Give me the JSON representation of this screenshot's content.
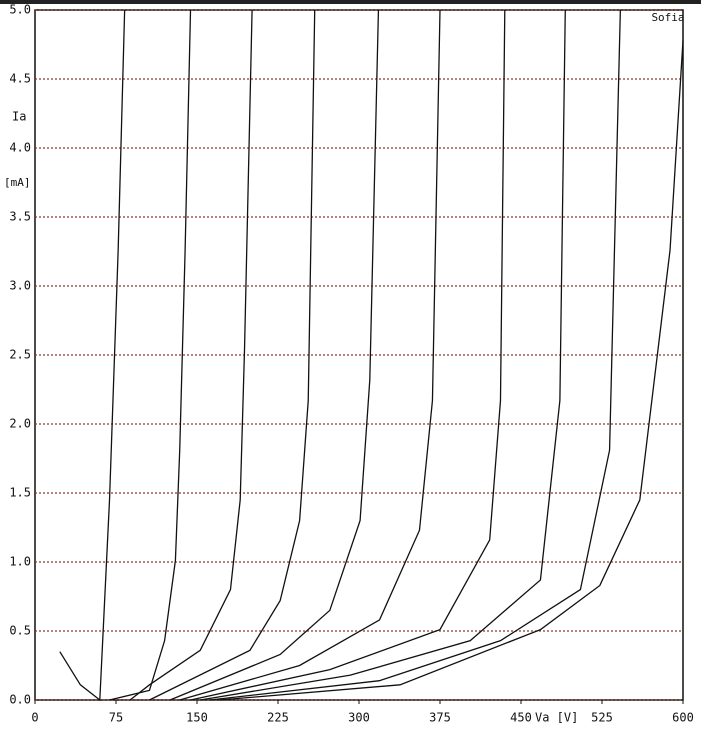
{
  "chart_data": {
    "type": "line",
    "xlabel": "Va [V]",
    "ylabel": "Ia",
    "yunit": "[mA]",
    "annotation": "Sofia",
    "xlim": [
      0,
      600
    ],
    "xticks": [
      0,
      75,
      150,
      225,
      300,
      375,
      450,
      525,
      600
    ],
    "ylim": [
      0,
      5
    ],
    "yticks": [
      {
        "value": 0,
        "label": "0.0"
      },
      {
        "value": 0.5,
        "label": "0.5"
      },
      {
        "value": 1,
        "label": "1.0"
      },
      {
        "value": 1.5,
        "label": "1.5"
      },
      {
        "value": 2,
        "label": "2.0"
      },
      {
        "value": 2.5,
        "label": "2.5"
      },
      {
        "value": 3,
        "label": "3.0"
      },
      {
        "value": 3.5,
        "label": "3.5"
      },
      {
        "value": 4,
        "label": "4.0"
      },
      {
        "value": 4.5,
        "label": "4.5"
      },
      {
        "value": 5,
        "label": "5.0"
      }
    ],
    "grid": true,
    "grid_color": "#8b3a2a",
    "series": [
      {
        "color": "#111111",
        "x": [
          23,
          42,
          60,
          69,
          77,
          83
        ],
        "values": [
          0.35,
          0.11,
          0,
          1.45,
          3.26,
          5.0
        ]
      },
      {
        "color": "#111111",
        "x": [
          69,
          106,
          120,
          130,
          134,
          139,
          144
        ],
        "values": [
          0,
          0.07,
          0.43,
          1.01,
          1.81,
          3.26,
          5.0
        ]
      },
      {
        "color": "#111111",
        "x": [
          88,
          106,
          153,
          181,
          190,
          194,
          201
        ],
        "values": [
          0,
          0.11,
          0.36,
          0.8,
          1.45,
          2.54,
          5.0
        ]
      },
      {
        "color": "#111111",
        "x": [
          106,
          199,
          227,
          245,
          253,
          259
        ],
        "values": [
          0,
          0.36,
          0.72,
          1.3,
          2.17,
          5.0
        ]
      },
      {
        "color": "#111111",
        "x": [
          125,
          227,
          273,
          301,
          310,
          318
        ],
        "values": [
          0,
          0.33,
          0.65,
          1.3,
          2.32,
          5.0
        ]
      },
      {
        "color": "#111111",
        "x": [
          134,
          245,
          319,
          356,
          368,
          375
        ],
        "values": [
          0,
          0.25,
          0.58,
          1.23,
          2.17,
          5.0
        ]
      },
      {
        "color": "#111111",
        "x": [
          144,
          273,
          375,
          421,
          431,
          435
        ],
        "values": [
          0,
          0.22,
          0.51,
          1.16,
          2.17,
          5.0
        ]
      },
      {
        "color": "#111111",
        "x": [
          153,
          292,
          403,
          468,
          486,
          491
        ],
        "values": [
          0,
          0.18,
          0.43,
          0.87,
          2.17,
          5.0
        ]
      },
      {
        "color": "#111111",
        "x": [
          162,
          319,
          431,
          505,
          532,
          542
        ],
        "values": [
          0,
          0.14,
          0.43,
          0.8,
          1.81,
          5.0
        ]
      },
      {
        "color": "#111111",
        "x": [
          171,
          338,
          468,
          523,
          560,
          588,
          600
        ],
        "values": [
          0,
          0.11,
          0.51,
          0.83,
          1.45,
          3.26,
          4.78
        ]
      }
    ]
  }
}
